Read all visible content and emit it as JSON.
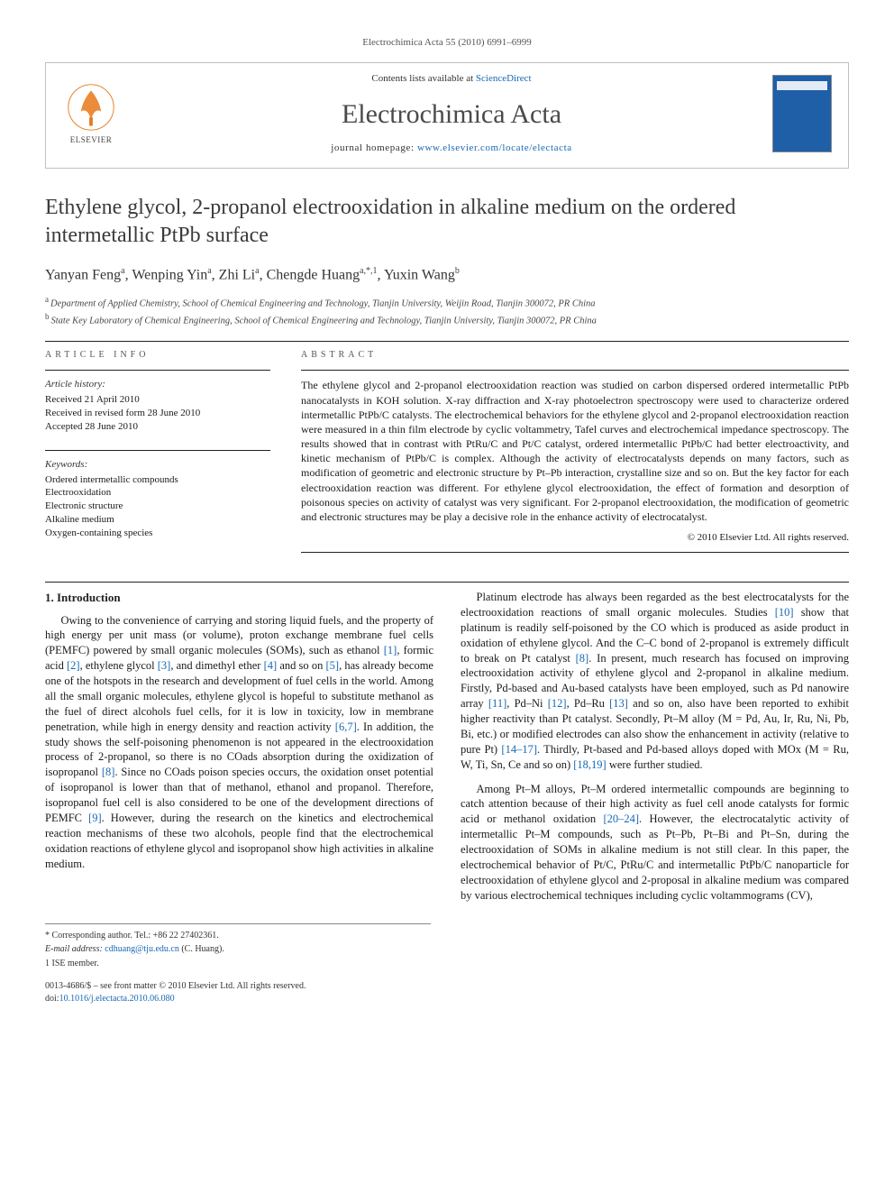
{
  "running_head": "Electrochimica Acta 55 (2010) 6991–6999",
  "masthead": {
    "contents_prefix": "Contents lists available at ",
    "contents_link": "ScienceDirect",
    "journal": "Electrochimica Acta",
    "homepage_prefix": "journal homepage: ",
    "homepage_url": "www.elsevier.com/locate/electacta",
    "publisher": "ELSEVIER"
  },
  "title": "Ethylene glycol, 2-propanol electrooxidation in alkaline medium on the ordered intermetallic PtPb surface",
  "authors_html": "Yanyan Feng<sup>a</sup>, Wenping Yin<sup>a</sup>, Zhi Li<sup>a</sup>, Chengde Huang<sup>a,*,1</sup>, Yuxin Wang<sup>b</sup>",
  "affiliations": [
    {
      "label": "a",
      "text": "Department of Applied Chemistry, School of Chemical Engineering and Technology, Tianjin University, Weijin Road, Tianjin 300072, PR China"
    },
    {
      "label": "b",
      "text": "State Key Laboratory of Chemical Engineering, School of Chemical Engineering and Technology, Tianjin University, Tianjin 300072, PR China"
    }
  ],
  "article_info": {
    "heading": "article info",
    "history_label": "Article history:",
    "history": [
      "Received 21 April 2010",
      "Received in revised form 28 June 2010",
      "Accepted 28 June 2010"
    ],
    "keywords_label": "Keywords:",
    "keywords": [
      "Ordered intermetallic compounds",
      "Electrooxidation",
      "Electronic structure",
      "Alkaline medium",
      "Oxygen-containing species"
    ]
  },
  "abstract": {
    "heading": "abstract",
    "text": "The ethylene glycol and 2-propanol electrooxidation reaction was studied on carbon dispersed ordered intermetallic PtPb nanocatalysts in KOH solution. X-ray diffraction and X-ray photoelectron spectroscopy were used to characterize ordered intermetallic PtPb/C catalysts. The electrochemical behaviors for the ethylene glycol and 2-propanol electrooxidation reaction were measured in a thin film electrode by cyclic voltammetry, Tafel curves and electrochemical impedance spectroscopy. The results showed that in contrast with PtRu/C and Pt/C catalyst, ordered intermetallic PtPb/C had better electroactivity, and kinetic mechanism of PtPb/C is complex. Although the activity of electrocatalysts depends on many factors, such as modification of geometric and electronic structure by Pt–Pb interaction, crystalline size and so on. But the key factor for each electrooxidation reaction was different. For ethylene glycol electrooxidation, the effect of formation and desorption of poisonous species on activity of catalyst was very significant. For 2-propanol electrooxidation, the modification of geometric and electronic structures may be play a decisive role in the enhance activity of electrocatalyst.",
    "copyright": "© 2010 Elsevier Ltd. All rights reserved."
  },
  "body": {
    "heading": "1.  Introduction",
    "p1": "Owing to the convenience of carrying and storing liquid fuels, and the property of high energy per unit mass (or volume), proton exchange membrane fuel cells (PEMFC) powered by small organic molecules (SOMs), such as ethanol [1], formic acid [2], ethylene glycol [3], and dimethyl ether [4] and so on [5], has already become one of the hotspots in the research and development of fuel cells in the world. Among all the small organic molecules, ethylene glycol is hopeful to substitute methanol as the fuel of direct alcohols fuel cells, for it is low in toxicity, low in membrane penetration, while high in energy density and reaction activity [6,7]. In addition, the study shows the self-poisoning phenomenon is not appeared in the electrooxidation process of 2-propanol, so there is no COads absorption during the oxidization of isopropanol [8]. Since no COads poison species occurs, the oxidation onset potential of isopropanol is lower than that of methanol, ethanol and propanol. Therefore, isopropanol fuel cell is also considered to be one of the development directions of PEMFC [9]. However, during the research on the kinetics and electrochemical reaction mechanisms of these two alcohols, people find that the electrochemical oxidation reactions of ethylene glycol and isopropanol show high activities in alkaline medium.",
    "p2": "Platinum electrode has always been regarded as the best electrocatalysts for the electrooxidation reactions of small organic molecules. Studies [10] show that platinum is readily self-poisoned by the CO which is produced as aside product in oxidation of ethylene glycol. And the C–C bond of 2-propanol is extremely difficult to break on Pt catalyst [8]. In present, much research has focused on improving electrooxidation activity of ethylene glycol and 2-propanol in alkaline medium. Firstly, Pd-based and Au-based catalysts have been employed, such as Pd nanowire array [11], Pd–Ni [12], Pd–Ru [13] and so on, also have been reported to exhibit higher reactivity than Pt catalyst. Secondly, Pt–M alloy (M = Pd, Au, Ir, Ru, Ni, Pb, Bi, etc.) or modified electrodes can also show the enhancement in activity (relative to pure Pt) [14–17]. Thirdly, Pt-based and Pd-based alloys doped with MOx (M = Ru, W, Ti, Sn, Ce and so on) [18,19] were further studied.",
    "p3": "Among Pt–M alloys, Pt–M ordered intermetallic compounds are beginning to catch attention because of their high activity as fuel cell anode catalysts for formic acid or methanol oxidation [20–24]. However, the electrocatalytic activity of intermetallic Pt–M compounds, such as Pt–Pb, Pt–Bi and Pt–Sn, during the electrooxidation of SOMs in alkaline medium is not still clear. In this paper, the electrochemical behavior of Pt/C, PtRu/C and intermetallic PtPb/C nanoparticle for electrooxidation of ethylene glycol and 2-proposal in alkaline medium was compared by various electrochemical techniques including cyclic voltammograms (CV),"
  },
  "footnotes": {
    "corr": "* Corresponding author. Tel.: +86 22 27402361.",
    "email_label": "E-mail address: ",
    "email": "cdhuang@tju.edu.cn",
    "email_suffix": " (C. Huang).",
    "note1": "1 ISE member."
  },
  "footer": {
    "line1": "0013-4686/$ – see front matter © 2010 Elsevier Ltd. All rights reserved.",
    "doi_label": "doi:",
    "doi": "10.1016/j.electacta.2010.06.080"
  },
  "colors": {
    "link": "#1668b3",
    "elsevier_orange": "#e67817",
    "rule": "#222222",
    "muted": "#555555"
  }
}
